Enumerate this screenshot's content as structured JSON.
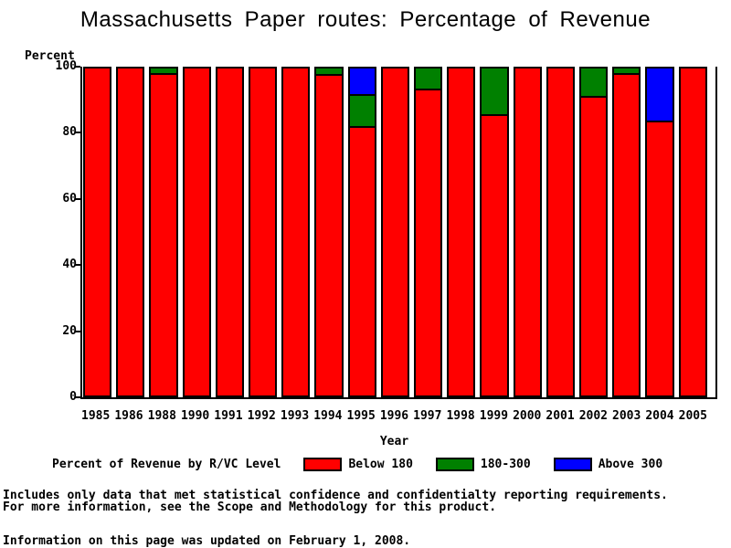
{
  "title": "Massachusetts Paper routes: Percentage of Revenue",
  "chart_data": {
    "type": "bar",
    "stacked": true,
    "title": "Massachusetts Paper routes: Percentage of Revenue",
    "ylabel": "Percent",
    "xlabel": "Year",
    "ylim": [
      0,
      100
    ],
    "yticks": [
      0,
      20,
      40,
      60,
      80,
      100
    ],
    "grid": false,
    "legend_title": "Percent of Revenue by R/VC Level",
    "legend_position": "bottom",
    "categories": [
      "1985",
      "1986",
      "1988",
      "1990",
      "1991",
      "1992",
      "1993",
      "1994",
      "1995",
      "1996",
      "1997",
      "1998",
      "1999",
      "2000",
      "2001",
      "2002",
      "2003",
      "2004",
      "2005"
    ],
    "series": [
      {
        "name": "Below 180",
        "color": "#ff0000",
        "values": [
          100,
          100,
          98.5,
          100,
          100,
          100,
          100,
          98.4,
          82.5,
          100,
          93.8,
          100,
          86,
          100,
          100,
          91.5,
          98.5,
          84,
          100
        ]
      },
      {
        "name": "180-300",
        "color": "#008000",
        "values": [
          0,
          0,
          1.5,
          0,
          0,
          0,
          0,
          1.6,
          9.8,
          0,
          6.2,
          0,
          14,
          0,
          0,
          8.5,
          1.5,
          0,
          0
        ]
      },
      {
        "name": "Above 300",
        "color": "#0000ff",
        "values": [
          0,
          0,
          0,
          0,
          0,
          0,
          0,
          0,
          7.7,
          0,
          0,
          0,
          0,
          0,
          0,
          0,
          0,
          16,
          0
        ]
      }
    ]
  },
  "footer": {
    "line1": "Includes only data that met statistical confidence and confidentialty reporting requirements.",
    "line2": "For more information, see the Scope and Methodology for this product.",
    "line3": "Information on this page was updated on February 1, 2008."
  }
}
